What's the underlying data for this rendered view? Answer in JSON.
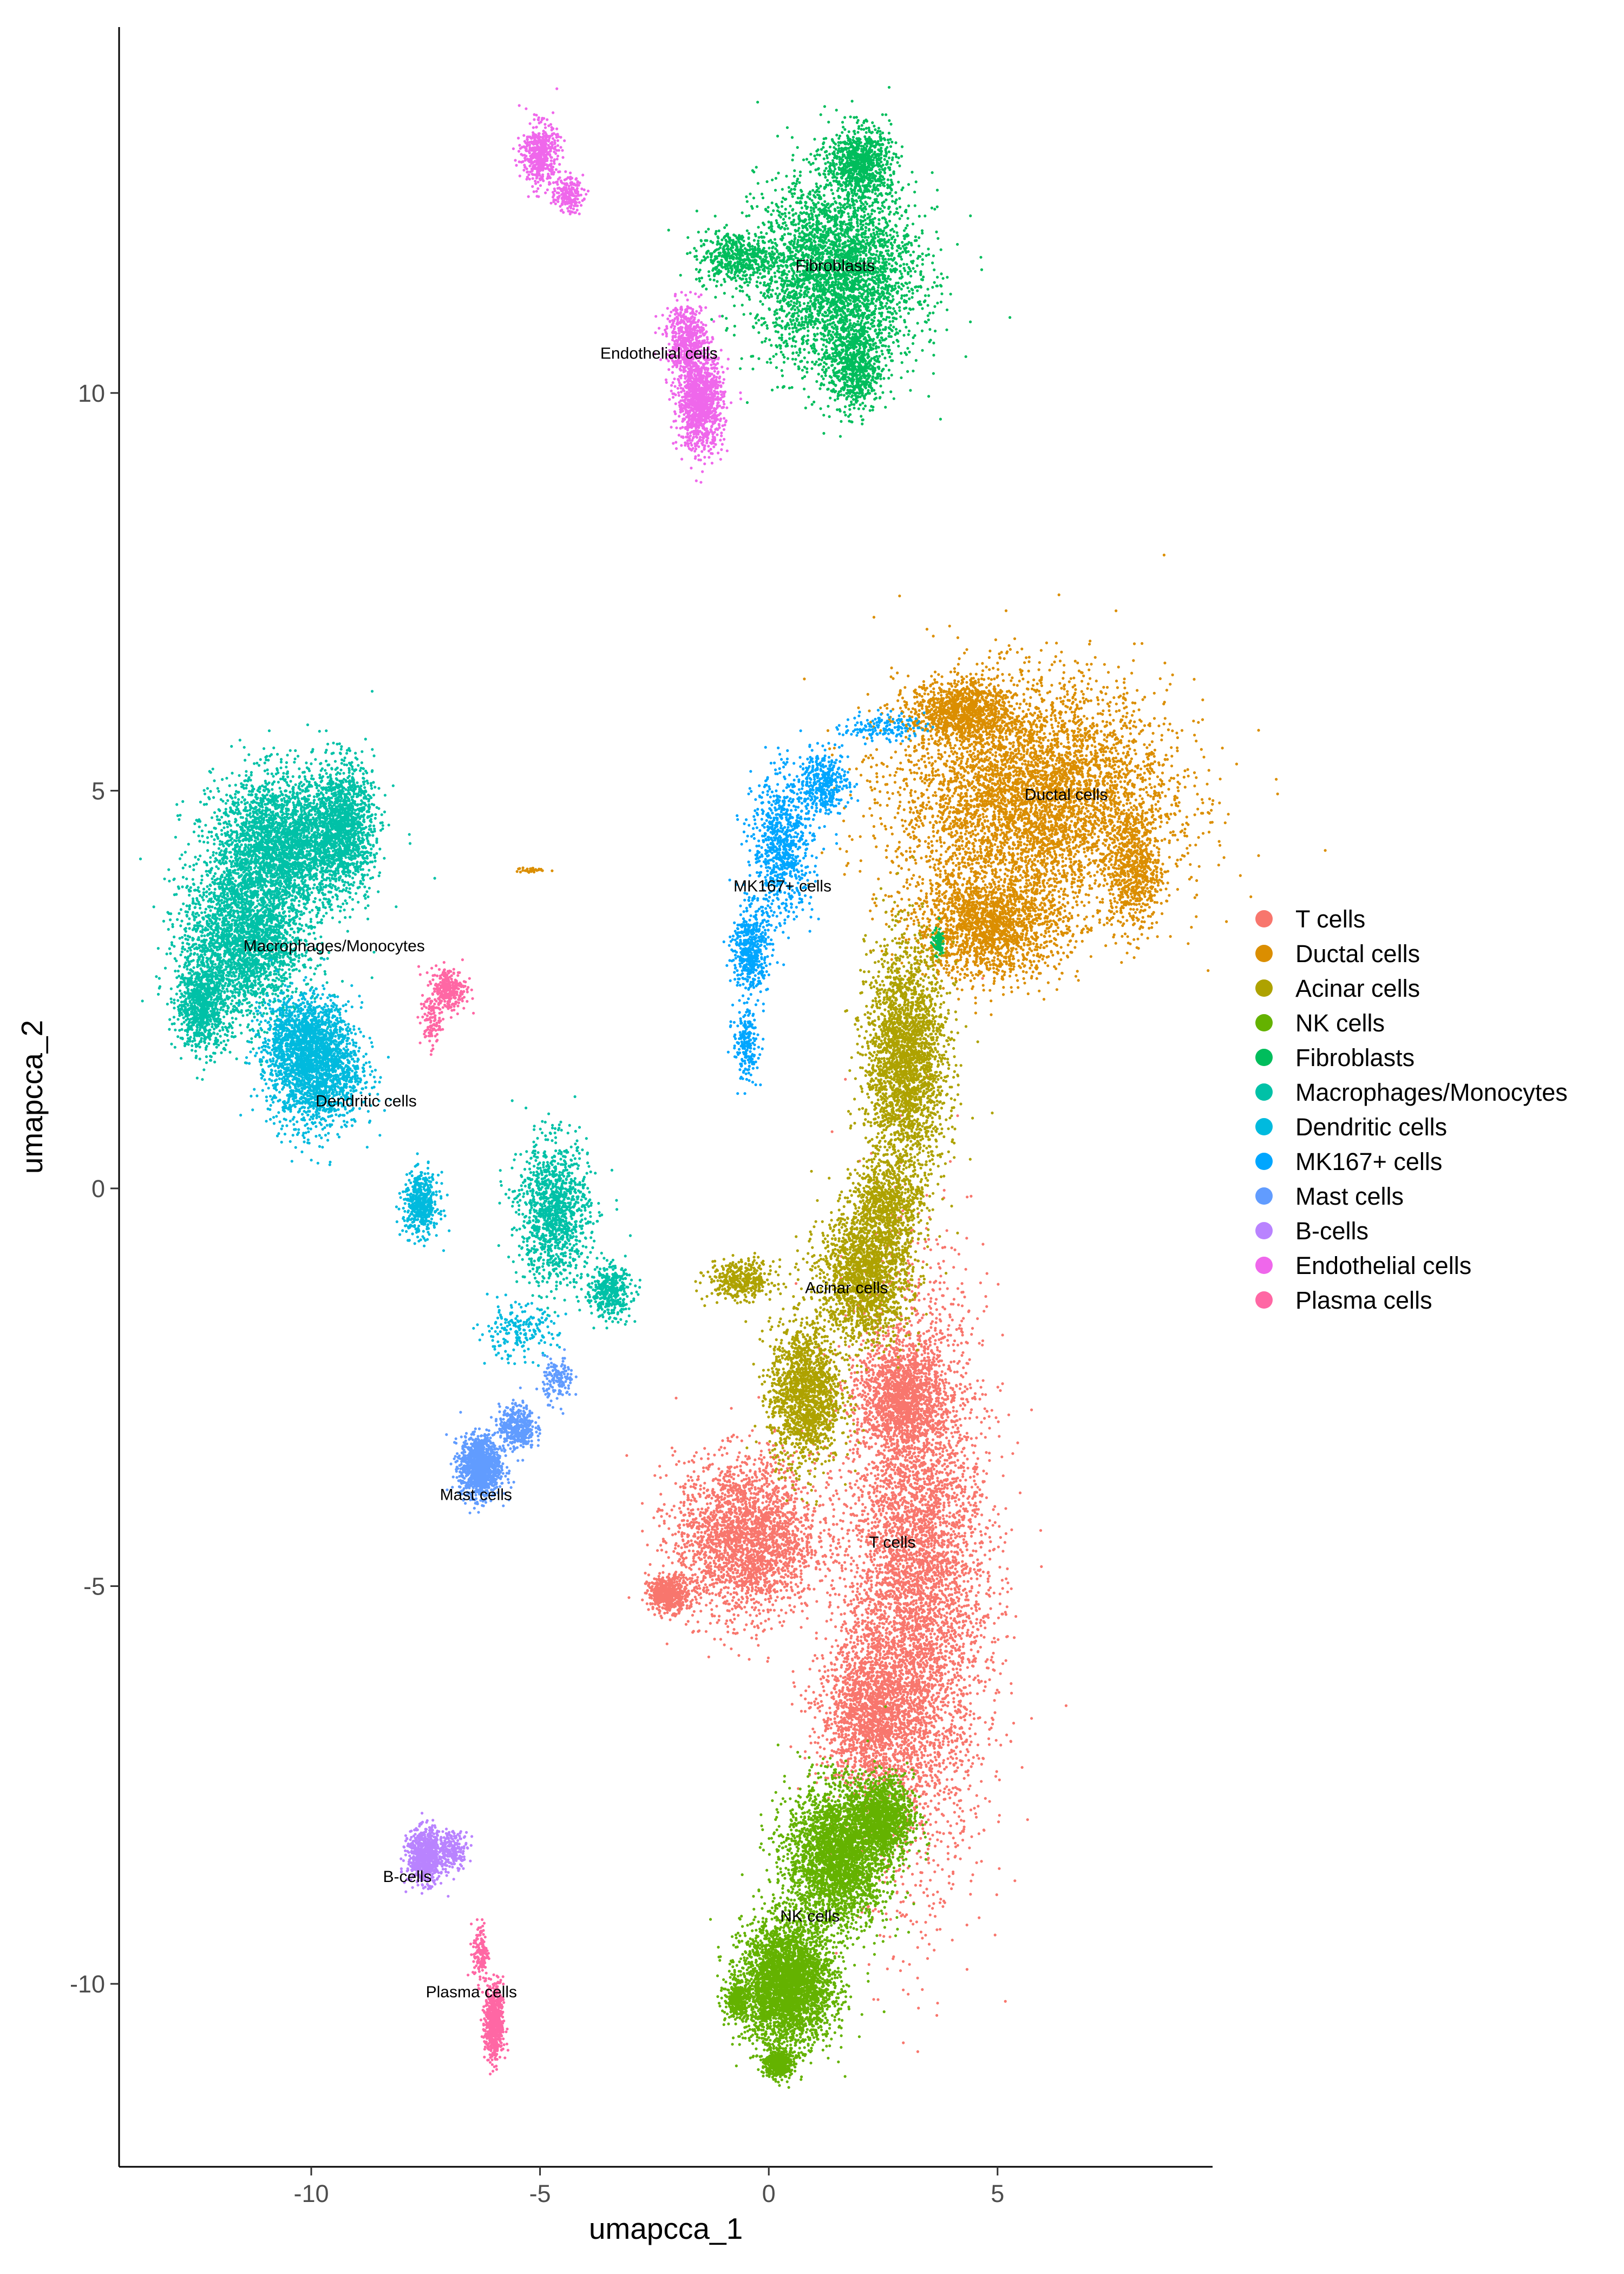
{
  "chart_data": {
    "type": "scatter",
    "xlabel": "umapcca_1",
    "ylabel": "umapcca_2",
    "xlim": [
      -14.2,
      9.7
    ],
    "ylim": [
      -12.3,
      14.6
    ],
    "x_ticks": [
      -10,
      -5,
      0,
      5
    ],
    "y_ticks": [
      -10,
      -5,
      0,
      5,
      10
    ],
    "legend_position": "right",
    "grid": false,
    "series": [
      {
        "name": "T cells",
        "color": "#F8766D",
        "label_xy": [
          2.7,
          -4.45
        ],
        "blobs": [
          [
            3.2,
            -4.9,
            1.4,
            3.2,
            7800
          ],
          [
            -0.5,
            -4.4,
            1.4,
            0.9,
            2600
          ],
          [
            -2.2,
            -5.1,
            0.4,
            0.2,
            500
          ],
          [
            2.2,
            -6.6,
            1.0,
            0.8,
            1500
          ],
          [
            2.9,
            -2.6,
            0.8,
            0.6,
            1200
          ]
        ]
      },
      {
        "name": "Ductal cells",
        "color": "#DB8E00",
        "label_xy": [
          6.5,
          4.95
        ],
        "blobs": [
          [
            5.8,
            4.9,
            2.7,
            1.3,
            7800
          ],
          [
            4.8,
            3.3,
            1.5,
            0.6,
            1800
          ],
          [
            4.2,
            6.0,
            1.0,
            0.35,
            1000
          ],
          [
            8.0,
            4.0,
            0.5,
            0.7,
            600
          ],
          [
            -5.2,
            4.0,
            0.3,
            0.03,
            30
          ]
        ]
      },
      {
        "name": "Acinar cells",
        "color": "#AEA200",
        "label_xy": [
          1.7,
          -1.25
        ],
        "blobs": [
          [
            3.0,
            1.6,
            0.8,
            1.3,
            2600
          ],
          [
            2.1,
            -1.1,
            0.9,
            0.75,
            1800
          ],
          [
            0.8,
            -2.6,
            0.7,
            0.8,
            1600
          ],
          [
            -0.6,
            -1.15,
            0.65,
            0.22,
            400
          ],
          [
            2.6,
            -0.2,
            0.7,
            0.5,
            700
          ]
        ]
      },
      {
        "name": "NK cells",
        "color": "#64B200",
        "label_xy": [
          0.9,
          -9.15
        ],
        "blobs": [
          [
            1.5,
            -8.4,
            1.0,
            0.8,
            3000
          ],
          [
            0.4,
            -10.0,
            0.9,
            0.7,
            3500
          ],
          [
            0.2,
            -11.0,
            0.25,
            0.15,
            500
          ],
          [
            -0.7,
            -10.2,
            0.25,
            0.2,
            300
          ],
          [
            2.5,
            -7.9,
            0.6,
            0.45,
            1200
          ]
        ]
      },
      {
        "name": "Fibroblasts",
        "color": "#00BD5C",
        "label_xy": [
          1.45,
          11.6
        ],
        "blobs": [
          [
            1.5,
            11.5,
            1.6,
            1.1,
            3500
          ],
          [
            2.0,
            12.9,
            0.6,
            0.4,
            800
          ],
          [
            1.9,
            10.3,
            0.5,
            0.5,
            600
          ],
          [
            -0.7,
            11.7,
            0.8,
            0.3,
            500
          ],
          [
            3.7,
            3.1,
            0.12,
            0.15,
            80
          ]
        ]
      },
      {
        "name": "Macrophages/Monocytes",
        "color": "#00C1A7",
        "label_xy": [
          -9.5,
          3.05
        ],
        "blobs": [
          [
            -10.6,
            4.3,
            1.4,
            0.8,
            3000
          ],
          [
            -9.3,
            4.6,
            0.6,
            0.7,
            1200
          ],
          [
            -11.5,
            3.1,
            1.2,
            0.9,
            2500
          ],
          [
            -12.4,
            2.3,
            0.5,
            0.5,
            800
          ],
          [
            -4.7,
            -0.3,
            0.7,
            0.8,
            1200
          ],
          [
            -3.5,
            -1.3,
            0.45,
            0.3,
            400
          ]
        ]
      },
      {
        "name": "Dendritic cells",
        "color": "#00BADE",
        "label_xy": [
          -8.8,
          1.1
        ],
        "blobs": [
          [
            -9.9,
            1.5,
            0.9,
            0.7,
            1800
          ],
          [
            -7.6,
            -0.2,
            0.35,
            0.35,
            500
          ],
          [
            -10.2,
            1.9,
            0.8,
            0.5,
            800
          ],
          [
            -5.5,
            -1.8,
            0.8,
            0.3,
            200
          ]
        ]
      },
      {
        "name": "MK167+ cells",
        "color": "#00A6FF",
        "label_xy": [
          0.3,
          3.8
        ],
        "blobs": [
          [
            0.3,
            4.3,
            0.6,
            0.8,
            800
          ],
          [
            1.2,
            5.1,
            0.5,
            0.35,
            400
          ],
          [
            -0.4,
            3.0,
            0.35,
            0.5,
            500
          ],
          [
            -0.5,
            1.8,
            0.25,
            0.4,
            200
          ],
          [
            2.5,
            5.8,
            0.8,
            0.15,
            150
          ]
        ]
      },
      {
        "name": "Mast cells",
        "color": "#619CFF",
        "label_xy": [
          -6.4,
          -3.85
        ],
        "blobs": [
          [
            -6.3,
            -3.5,
            0.4,
            0.35,
            1200
          ],
          [
            -5.5,
            -3.0,
            0.35,
            0.25,
            400
          ],
          [
            -4.6,
            -2.4,
            0.3,
            0.25,
            150
          ]
        ]
      },
      {
        "name": "B-cells",
        "color": "#B983FF",
        "label_xy": [
          -7.9,
          -8.65
        ],
        "blobs": [
          [
            -7.5,
            -8.4,
            0.35,
            0.3,
            800
          ],
          [
            -6.9,
            -8.3,
            0.3,
            0.2,
            200
          ]
        ]
      },
      {
        "name": "Endothelial cells",
        "color": "#EF67EB",
        "label_xy": [
          -2.4,
          10.5
        ],
        "blobs": [
          [
            -1.5,
            9.9,
            0.45,
            0.55,
            1200
          ],
          [
            -1.8,
            10.7,
            0.4,
            0.4,
            500
          ],
          [
            -5.0,
            13.0,
            0.35,
            0.35,
            500
          ],
          [
            -4.4,
            12.5,
            0.3,
            0.2,
            200
          ]
        ]
      },
      {
        "name": "Plasma cells",
        "color": "#FF67A4",
        "label_xy": [
          -6.5,
          -10.1
        ],
        "blobs": [
          [
            -6.0,
            -10.5,
            0.18,
            0.45,
            600
          ],
          [
            -6.3,
            -9.6,
            0.15,
            0.35,
            150
          ],
          [
            -7.0,
            2.5,
            0.35,
            0.25,
            300
          ],
          [
            -7.4,
            2.1,
            0.2,
            0.3,
            100
          ]
        ]
      }
    ]
  }
}
